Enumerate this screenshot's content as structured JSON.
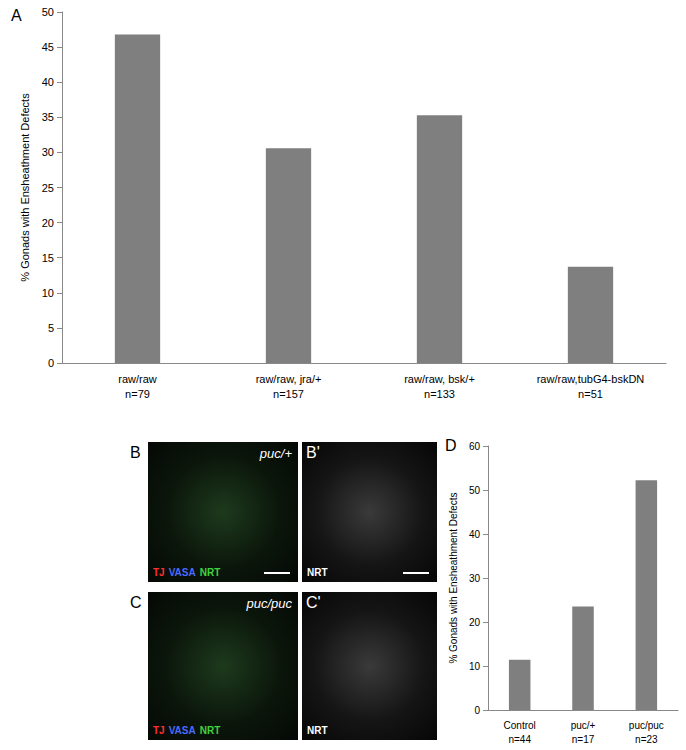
{
  "chart_data": [
    {
      "type": "bar",
      "title": "A",
      "categories": [
        "raw/raw\nn=79",
        "raw/raw, jra/+\nn=157",
        "raw/raw, bsk/+\nn=133",
        "raw/raw,tubG4-bskDN\nn=51"
      ],
      "values": [
        46.8,
        30.6,
        35.3,
        13.7
      ],
      "ylabel": "% Gonads with Ensheathment Defects",
      "ylim": [
        0,
        50
      ],
      "yticks": [
        0,
        5,
        10,
        15,
        20,
        25,
        30,
        35,
        40,
        45,
        50
      ],
      "color": "#7f7f7f",
      "grid": false
    },
    {
      "type": "bar",
      "title": "D",
      "categories": [
        "Control\nn=44",
        "puc/+\nn=17",
        "puc/puc\nn=23"
      ],
      "values": [
        11.4,
        23.5,
        52.2
      ],
      "ylabel": "% Gonads with Ensheathment Defects",
      "ylim": [
        0,
        60
      ],
      "yticks": [
        0,
        10,
        20,
        30,
        40,
        50,
        60
      ],
      "color": "#7f7f7f",
      "grid": false
    }
  ],
  "images": [
    {
      "panel": "B",
      "genotype": "puc/+",
      "stains": [
        {
          "text": "TJ",
          "color": "#ff3030"
        },
        {
          "text": "VASA",
          "color": "#4a6bff"
        },
        {
          "text": "NRT",
          "color": "#3fd43f"
        }
      ]
    },
    {
      "panel": "B'",
      "stains": [
        {
          "text": "NRT",
          "color": "#ffffff"
        }
      ]
    },
    {
      "panel": "C",
      "genotype": "puc/puc",
      "stains": [
        {
          "text": "TJ",
          "color": "#ff3030"
        },
        {
          "text": "VASA",
          "color": "#4a6bff"
        },
        {
          "text": "NRT",
          "color": "#3fd43f"
        }
      ]
    },
    {
      "panel": "C'",
      "stains": [
        {
          "text": "NRT",
          "color": "#ffffff"
        }
      ]
    }
  ]
}
